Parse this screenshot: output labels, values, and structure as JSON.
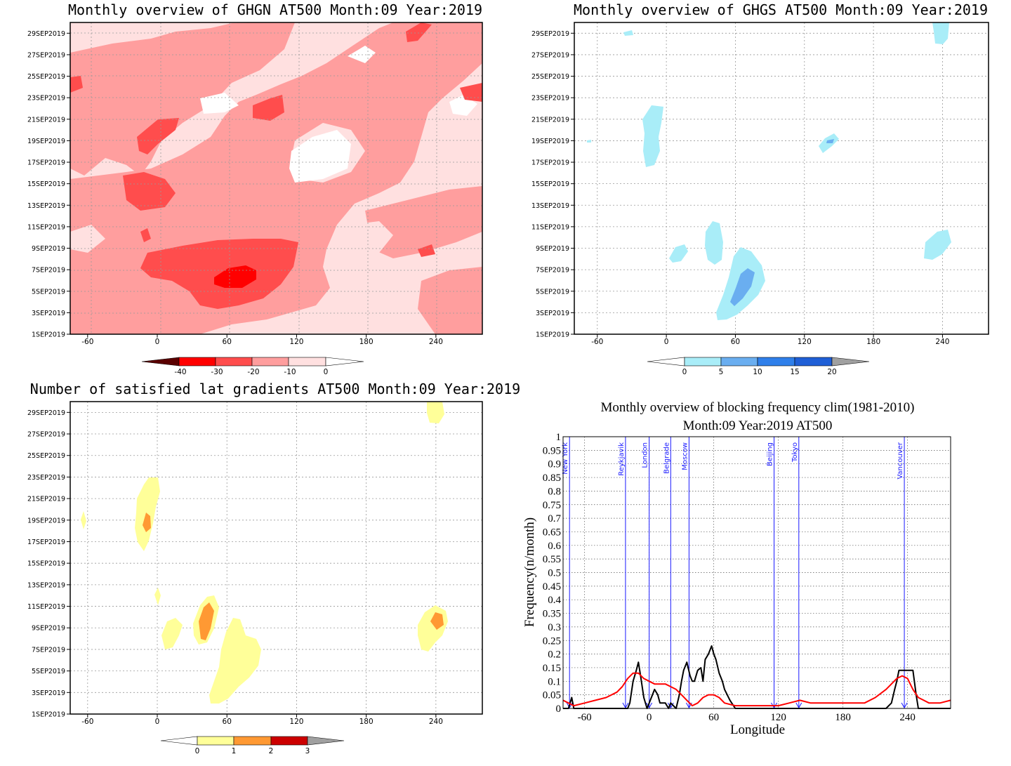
{
  "chart_data": [
    {
      "type": "heatmap",
      "title": "Monthly overview of GHGN AT500 Month:09 Year:2019",
      "y_tick_labels": [
        "1SEP2019",
        "3SEP2019",
        "5SEP2019",
        "7SEP2019",
        "9SEP2019",
        "11SEP2019",
        "13SEP2019",
        "15SEP2019",
        "17SEP2019",
        "19SEP2019",
        "21SEP2019",
        "23SEP2019",
        "25SEP2019",
        "27SEP2019",
        "29SEP2019"
      ],
      "x_ticks": [
        -60,
        0,
        60,
        120,
        180,
        240
      ],
      "xlim": [
        -75,
        280
      ],
      "colorbar": {
        "ticks": [
          "-40",
          "-30",
          "-20",
          "-10",
          "0"
        ],
        "colors": [
          "#5a0000",
          "#ff0000",
          "#ff4d4d",
          "#ff9e9e",
          "#ffe0e0",
          "#ffffff"
        ]
      }
    },
    {
      "type": "heatmap",
      "title": "Monthly overview of GHGS AT500 Month:09 Year:2019",
      "y_tick_labels": [
        "1SEP2019",
        "3SEP2019",
        "5SEP2019",
        "7SEP2019",
        "9SEP2019",
        "11SEP2019",
        "13SEP2019",
        "15SEP2019",
        "17SEP2019",
        "19SEP2019",
        "21SEP2019",
        "23SEP2019",
        "25SEP2019",
        "27SEP2019",
        "29SEP2019"
      ],
      "x_ticks": [
        -60,
        0,
        60,
        120,
        180,
        240
      ],
      "xlim": [
        -80,
        280
      ],
      "colorbar": {
        "ticks": [
          "0",
          "5",
          "10",
          "15",
          "20"
        ],
        "colors": [
          "#ffffff",
          "#a9edf8",
          "#6aaef0",
          "#2f7fea",
          "#1f5fd6",
          "#a0a0a0"
        ]
      }
    },
    {
      "type": "heatmap",
      "title": "Number of satisfied lat gradients AT500 Month:09 Year:2019",
      "y_tick_labels": [
        "1SEP2019",
        "3SEP2019",
        "5SEP2019",
        "7SEP2019",
        "9SEP2019",
        "11SEP2019",
        "13SEP2019",
        "15SEP2019",
        "17SEP2019",
        "19SEP2019",
        "21SEP2019",
        "23SEP2019",
        "25SEP2019",
        "27SEP2019",
        "29SEP2019"
      ],
      "x_ticks": [
        -60,
        0,
        60,
        120,
        180,
        240
      ],
      "xlim": [
        -75,
        280
      ],
      "colorbar": {
        "ticks": [
          "0",
          "1",
          "2",
          "3"
        ],
        "colors": [
          "#ffffff",
          "#ffff99",
          "#ff9933",
          "#cc0000",
          "#a0a0a0"
        ]
      }
    },
    {
      "type": "line",
      "title": "Monthly overview of blocking frequency clim(1981-2010)",
      "subtitle": "Month:09 Year:2019  AT500",
      "xlabel": "Longitude",
      "ylabel": "Frequency(n/month)",
      "xlim": [
        -80,
        280
      ],
      "ylim": [
        0,
        1
      ],
      "x_ticks": [
        -60,
        0,
        60,
        120,
        180,
        240
      ],
      "y_ticks": [
        0,
        0.05,
        0.1,
        0.15,
        0.2,
        0.25,
        0.3,
        0.35,
        0.4,
        0.45,
        0.5,
        0.55,
        0.6,
        0.65,
        0.7,
        0.75,
        0.8,
        0.85,
        0.9,
        0.95,
        1
      ],
      "series": [
        {
          "color": "#000000",
          "x": [
            -80,
            -75,
            -72,
            -70,
            -68,
            -65,
            -60,
            -50,
            -40,
            -30,
            -25,
            -20,
            -18,
            -15,
            -12,
            -10,
            -8,
            -5,
            -2,
            0,
            3,
            5,
            8,
            10,
            12,
            15,
            18,
            20,
            25,
            28,
            30,
            32,
            35,
            38,
            40,
            42,
            45,
            48,
            50,
            52,
            55,
            58,
            60,
            62,
            65,
            68,
            70,
            75,
            80,
            90,
            100,
            120,
            140,
            160,
            180,
            200,
            220,
            225,
            228,
            230,
            232,
            235,
            240,
            245,
            248,
            250,
            255,
            260,
            270,
            280
          ],
          "y": [
            0,
            0,
            0.04,
            0,
            0,
            0,
            0,
            0,
            0,
            0,
            0,
            0,
            0.02,
            0.1,
            0.14,
            0.17,
            0.12,
            0.04,
            0,
            0.02,
            0.05,
            0.07,
            0.05,
            0.02,
            0.02,
            0.02,
            0,
            0.02,
            0,
            0.05,
            0.1,
            0.14,
            0.17,
            0.12,
            0.1,
            0.1,
            0.14,
            0.15,
            0.1,
            0.18,
            0.2,
            0.23,
            0.2,
            0.18,
            0.13,
            0.1,
            0.07,
            0.03,
            0,
            0,
            0,
            0,
            0,
            0,
            0,
            0,
            0,
            0.02,
            0.07,
            0.1,
            0.14,
            0.14,
            0.14,
            0.14,
            0.05,
            0,
            0,
            0,
            0,
            0
          ]
        },
        {
          "color": "#ff0000",
          "x": [
            -80,
            -75,
            -70,
            -60,
            -50,
            -40,
            -30,
            -25,
            -20,
            -15,
            -10,
            -5,
            0,
            5,
            10,
            15,
            20,
            25,
            30,
            35,
            40,
            45,
            50,
            55,
            60,
            65,
            70,
            80,
            90,
            100,
            110,
            120,
            130,
            140,
            150,
            160,
            170,
            180,
            190,
            200,
            210,
            220,
            225,
            230,
            235,
            240,
            245,
            250,
            255,
            260,
            270,
            280
          ],
          "y": [
            0.03,
            0.02,
            0.01,
            0.02,
            0.03,
            0.04,
            0.06,
            0.08,
            0.11,
            0.13,
            0.13,
            0.11,
            0.1,
            0.09,
            0.09,
            0.09,
            0.08,
            0.07,
            0.05,
            0.03,
            0.01,
            0.02,
            0.04,
            0.05,
            0.05,
            0.04,
            0.02,
            0.01,
            0.01,
            0.01,
            0.01,
            0.01,
            0.02,
            0.03,
            0.02,
            0.02,
            0.02,
            0.02,
            0.02,
            0.02,
            0.04,
            0.07,
            0.09,
            0.11,
            0.12,
            0.11,
            0.07,
            0.04,
            0.03,
            0.02,
            0.02,
            0.03
          ]
        }
      ],
      "annotations": [
        {
          "label": "New York",
          "x": -74
        },
        {
          "label": "Reykjavik",
          "x": -22
        },
        {
          "label": "London",
          "x": 0
        },
        {
          "label": "Belgrade",
          "x": 20
        },
        {
          "label": "Moscow",
          "x": 37
        },
        {
          "label": "Beijing",
          "x": 116
        },
        {
          "label": "Tokyo",
          "x": 139
        },
        {
          "label": "Vancouver",
          "x": 237
        }
      ]
    }
  ]
}
